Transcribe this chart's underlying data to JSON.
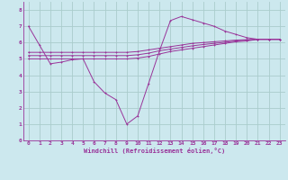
{
  "bg_color": "#cce8ee",
  "line_color": "#993399",
  "grid_color": "#aacccc",
  "xlabel": "Windchill (Refroidissement éolien,°C)",
  "ylim": [
    0,
    8.5
  ],
  "xlim": [
    -0.5,
    23.5
  ],
  "yticks": [
    0,
    1,
    2,
    3,
    4,
    5,
    6,
    7,
    8
  ],
  "xticks": [
    0,
    1,
    2,
    3,
    4,
    5,
    6,
    7,
    8,
    9,
    10,
    11,
    12,
    13,
    14,
    15,
    16,
    17,
    18,
    19,
    20,
    21,
    22,
    23
  ],
  "lines": [
    {
      "x": [
        0,
        1,
        2,
        3,
        4,
        5,
        6,
        7,
        8,
        9,
        10,
        11,
        12,
        13,
        14,
        15,
        16,
        17,
        18,
        19,
        20,
        21,
        22,
        23
      ],
      "y": [
        7.0,
        5.85,
        4.7,
        4.8,
        4.95,
        5.0,
        3.6,
        2.9,
        2.5,
        1.0,
        1.5,
        3.5,
        5.5,
        7.35,
        7.6,
        7.4,
        7.2,
        7.0,
        6.7,
        6.5,
        6.3,
        6.2,
        6.2,
        6.2
      ]
    },
    {
      "x": [
        0,
        1,
        2,
        3,
        4,
        5,
        6,
        7,
        8,
        9,
        10,
        11,
        12,
        13,
        14,
        15,
        16,
        17,
        18,
        19,
        20,
        21,
        22,
        23
      ],
      "y": [
        5.0,
        5.0,
        5.0,
        5.0,
        5.0,
        5.0,
        5.0,
        5.0,
        5.0,
        5.0,
        5.05,
        5.15,
        5.3,
        5.45,
        5.55,
        5.65,
        5.75,
        5.85,
        5.95,
        6.05,
        6.1,
        6.2,
        6.2,
        6.2
      ]
    },
    {
      "x": [
        0,
        1,
        2,
        3,
        4,
        5,
        6,
        7,
        8,
        9,
        10,
        11,
        12,
        13,
        14,
        15,
        16,
        17,
        18,
        19,
        20,
        21,
        22,
        23
      ],
      "y": [
        5.2,
        5.2,
        5.2,
        5.2,
        5.2,
        5.2,
        5.2,
        5.2,
        5.2,
        5.2,
        5.25,
        5.35,
        5.5,
        5.6,
        5.7,
        5.8,
        5.88,
        5.95,
        6.02,
        6.1,
        6.15,
        6.2,
        6.2,
        6.2
      ]
    },
    {
      "x": [
        0,
        1,
        2,
        3,
        4,
        5,
        6,
        7,
        8,
        9,
        10,
        11,
        12,
        13,
        14,
        15,
        16,
        17,
        18,
        19,
        20,
        21,
        22,
        23
      ],
      "y": [
        5.4,
        5.4,
        5.4,
        5.4,
        5.4,
        5.4,
        5.4,
        5.4,
        5.4,
        5.4,
        5.45,
        5.55,
        5.65,
        5.75,
        5.85,
        5.95,
        6.0,
        6.05,
        6.1,
        6.15,
        6.18,
        6.2,
        6.2,
        6.2
      ]
    }
  ]
}
